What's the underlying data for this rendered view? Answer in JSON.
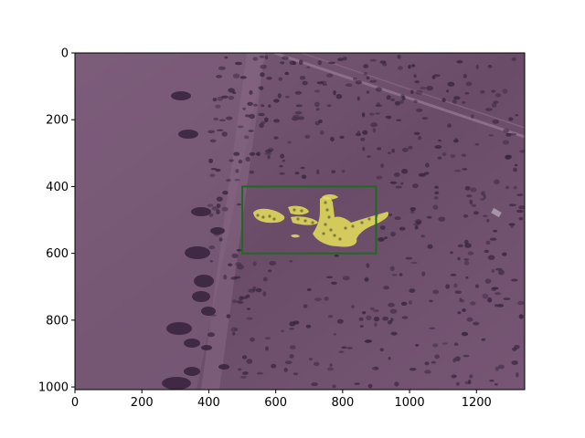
{
  "figure": {
    "x_axis": {
      "range": [
        0,
        1344
      ],
      "ticks": [
        0,
        200,
        400,
        600,
        800,
        1000,
        1200
      ],
      "tick_labels": [
        "0",
        "200",
        "400",
        "600",
        "800",
        "1000",
        "1200"
      ]
    },
    "y_axis": {
      "range": [
        0,
        1008
      ],
      "inverted": true,
      "ticks": [
        0,
        200,
        400,
        600,
        800,
        1000
      ],
      "tick_labels": [
        "0",
        "200",
        "400",
        "600",
        "800",
        "1000"
      ]
    },
    "image_description_colors": {
      "ground_tint": "#6e4f6a",
      "tree_dark": "#3a2540",
      "mask_color": "#e6e05a"
    },
    "bounding_box": {
      "x_min": 500,
      "y_min": 400,
      "x_max": 900,
      "y_max": 600,
      "color": "#1e6b1e"
    }
  }
}
